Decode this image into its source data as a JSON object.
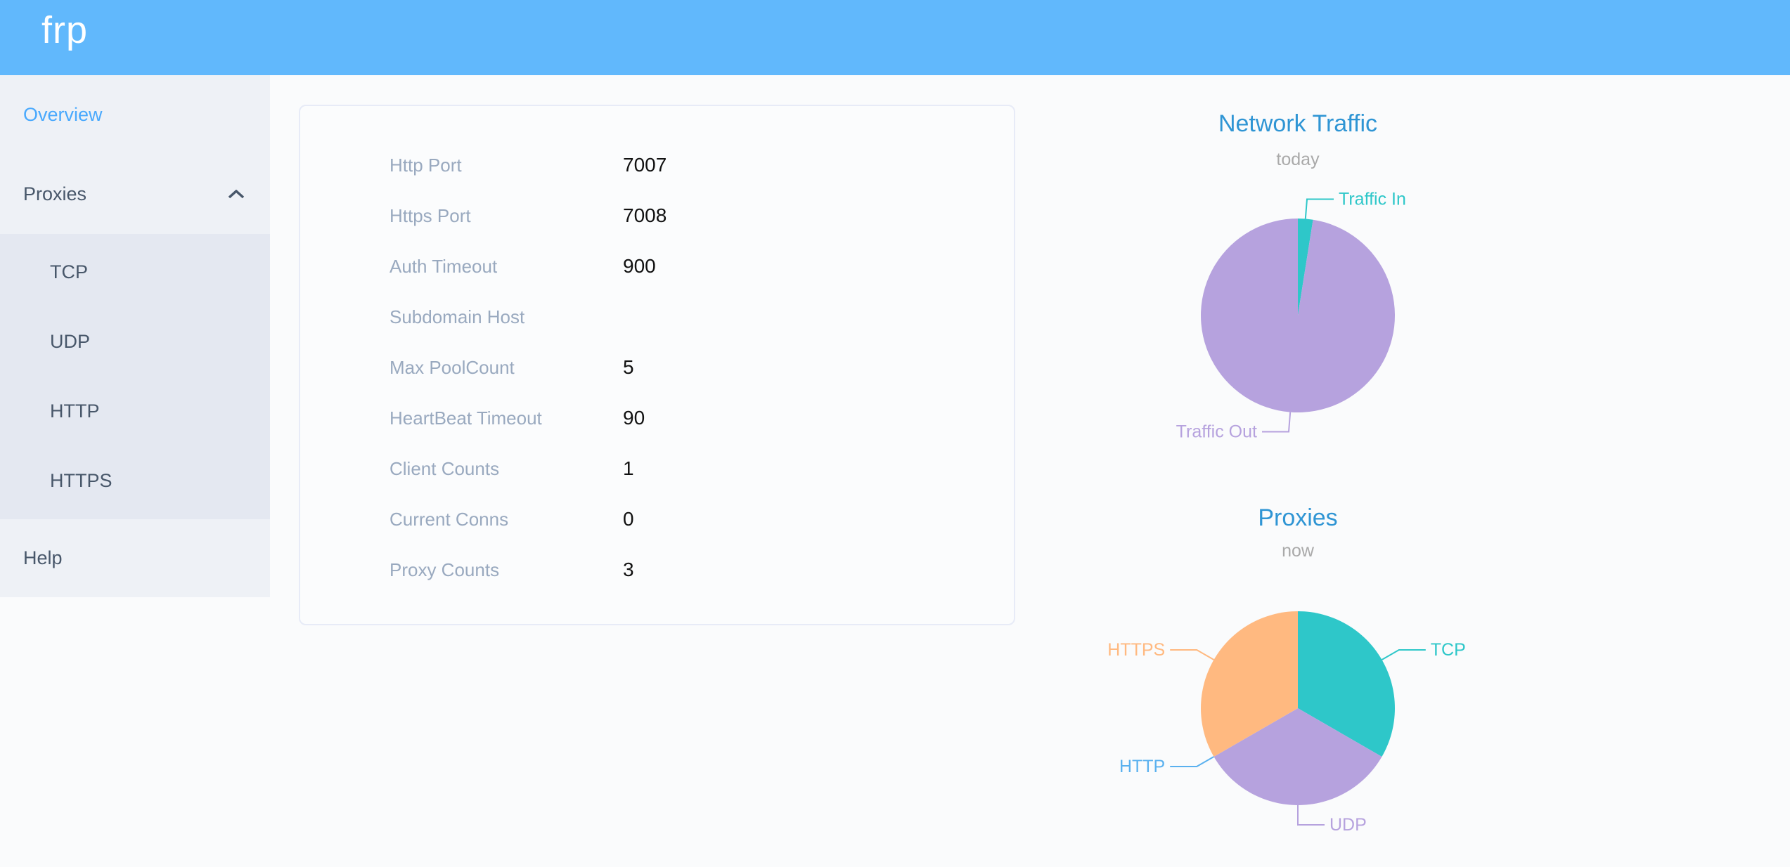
{
  "header": {
    "logo": "frp"
  },
  "sidebar": {
    "items": [
      {
        "label": "Overview",
        "active": true
      },
      {
        "label": "Proxies",
        "expanded": true,
        "children": [
          "TCP",
          "UDP",
          "HTTP",
          "HTTPS"
        ]
      },
      {
        "label": "Help"
      }
    ]
  },
  "overview_card": {
    "rows": [
      {
        "label": "Http Port",
        "value": "7007"
      },
      {
        "label": "Https Port",
        "value": "7008"
      },
      {
        "label": "Auth Timeout",
        "value": "900"
      },
      {
        "label": "Subdomain Host",
        "value": ""
      },
      {
        "label": "Max PoolCount",
        "value": "5"
      },
      {
        "label": "HeartBeat Timeout",
        "value": "90"
      },
      {
        "label": "Client Counts",
        "value": "1"
      },
      {
        "label": "Current Conns",
        "value": "0"
      },
      {
        "label": "Proxy Counts",
        "value": "3"
      }
    ]
  },
  "chart_data": [
    {
      "type": "pie",
      "title": "Network Traffic",
      "subtitle": "today",
      "legend_position": "leader-line-labels",
      "slices": [
        {
          "name": "Traffic In",
          "percent": 2.5,
          "color": "#2ec7c9"
        },
        {
          "name": "Traffic Out",
          "percent": 97.5,
          "color": "#b6a2de"
        }
      ]
    },
    {
      "type": "pie",
      "title": "Proxies",
      "subtitle": "now",
      "legend_position": "leader-line-labels",
      "slices": [
        {
          "name": "TCP",
          "value": 1,
          "percent": 33.3,
          "color": "#2ec7c9"
        },
        {
          "name": "UDP",
          "value": 1,
          "percent": 33.3,
          "color": "#b6a2de"
        },
        {
          "name": "HTTP",
          "value": 0,
          "percent": 0,
          "color": "#5ab1ef"
        },
        {
          "name": "HTTPS",
          "value": 1,
          "percent": 33.3,
          "color": "#ffb980"
        }
      ]
    }
  ],
  "theme": {
    "header_bg": "#61b8fc",
    "sidebar_bg": "#eef1f6",
    "submenu_bg": "#e4e8f1",
    "sidebar_text": "#48576a",
    "active_item": "#49a9fd",
    "chart_title": "#2f95d4",
    "chart_subtitle": "#a9a9a9",
    "card_label": "#99a9bf",
    "card_value": "#111111"
  }
}
